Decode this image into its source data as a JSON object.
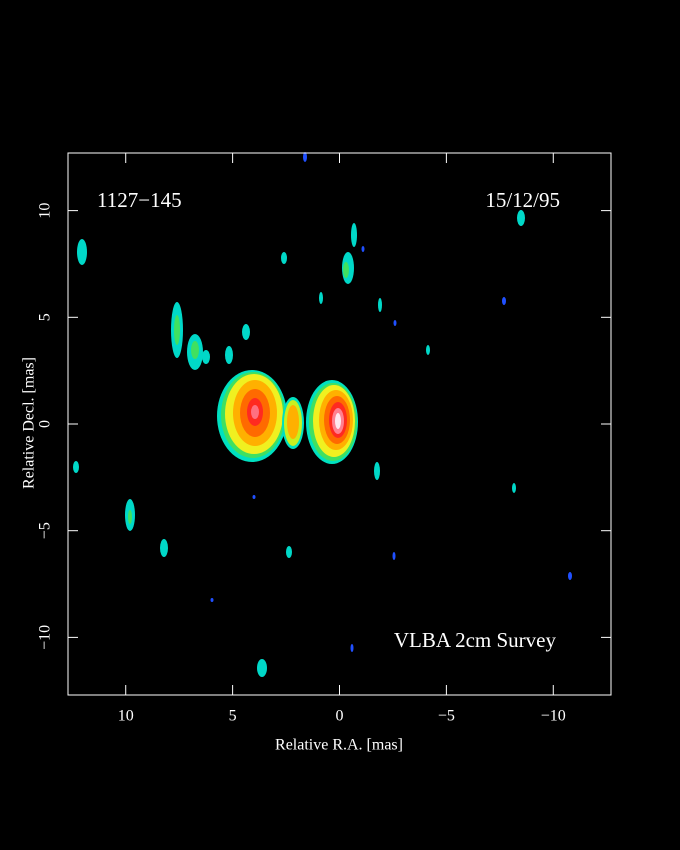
{
  "chart_data": {
    "type": "image",
    "annotations": [
      "1127−145",
      "15/12/95",
      "VLBA 2cm Survey"
    ],
    "x_label": "Relative R.A. [mas]",
    "y_label": "Relative Decl. [mas]",
    "xlim": [
      12.7,
      -12.7
    ],
    "ylim": [
      -12.7,
      12.7
    ],
    "xticks": [
      {
        "value": 10,
        "label": "10"
      },
      {
        "value": 5,
        "label": "5"
      },
      {
        "value": 0,
        "label": "0"
      },
      {
        "value": -5,
        "label": "−5"
      },
      {
        "value": -10,
        "label": "−10"
      }
    ],
    "yticks": [
      {
        "value": -10,
        "label": "−10"
      },
      {
        "value": -5,
        "label": "−5"
      },
      {
        "value": 0,
        "label": "0"
      },
      {
        "value": 5,
        "label": "5"
      },
      {
        "value": 10,
        "label": "10"
      }
    ],
    "frame_color": "#ffffff"
  }
}
